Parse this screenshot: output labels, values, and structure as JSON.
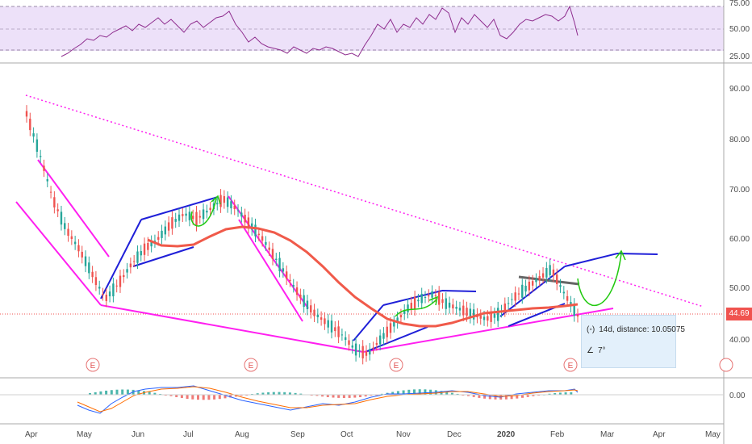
{
  "chart_data": {
    "type": "line",
    "title": "",
    "price_axis_ticks": [
      "90.00",
      "80.00",
      "70.00",
      "60.00",
      "50.00",
      "40.00"
    ],
    "last_price": "44.69",
    "time_axis_ticks": [
      "Apr",
      "May",
      "Jun",
      "Jul",
      "Aug",
      "Sep",
      "Oct",
      "Nov",
      "Dec",
      "2020",
      "Feb",
      "Mar",
      "Apr",
      "May"
    ],
    "rsi_axis_ticks": [
      "75.00",
      "50.00",
      "25.00"
    ],
    "macd_axis_ticks": [
      "0.00"
    ],
    "earnings_markers": [
      "E",
      "E",
      "E",
      "E"
    ],
    "series": [
      {
        "name": "",
        "values": [
          85,
          77,
          68,
          62,
          58,
          53,
          48,
          51,
          55,
          58,
          60,
          63,
          65,
          64,
          66,
          68,
          66,
          63,
          60,
          56,
          52,
          48,
          45,
          43,
          41,
          38,
          37,
          40,
          43,
          46,
          48,
          49,
          47,
          46,
          45,
          44,
          45,
          48,
          50,
          52,
          54,
          49,
          44.69
        ]
      }
    ],
    "grid": true
  },
  "tooltip": {
    "measure_text": "14d, distance: 10.05075",
    "angle_text": "7°"
  },
  "colors": {
    "rsi_bg": "#ede1f9",
    "rsi_line": "#8e2d8e",
    "trend_magenta": "#ff1ff0",
    "channel_blue": "#1f1fd8",
    "ma_red": "#f05a4a",
    "gray_line": "#666666",
    "arrow_green": "#21c90f",
    "up_bar": "#26a69a",
    "down_bar": "#ef5350"
  }
}
